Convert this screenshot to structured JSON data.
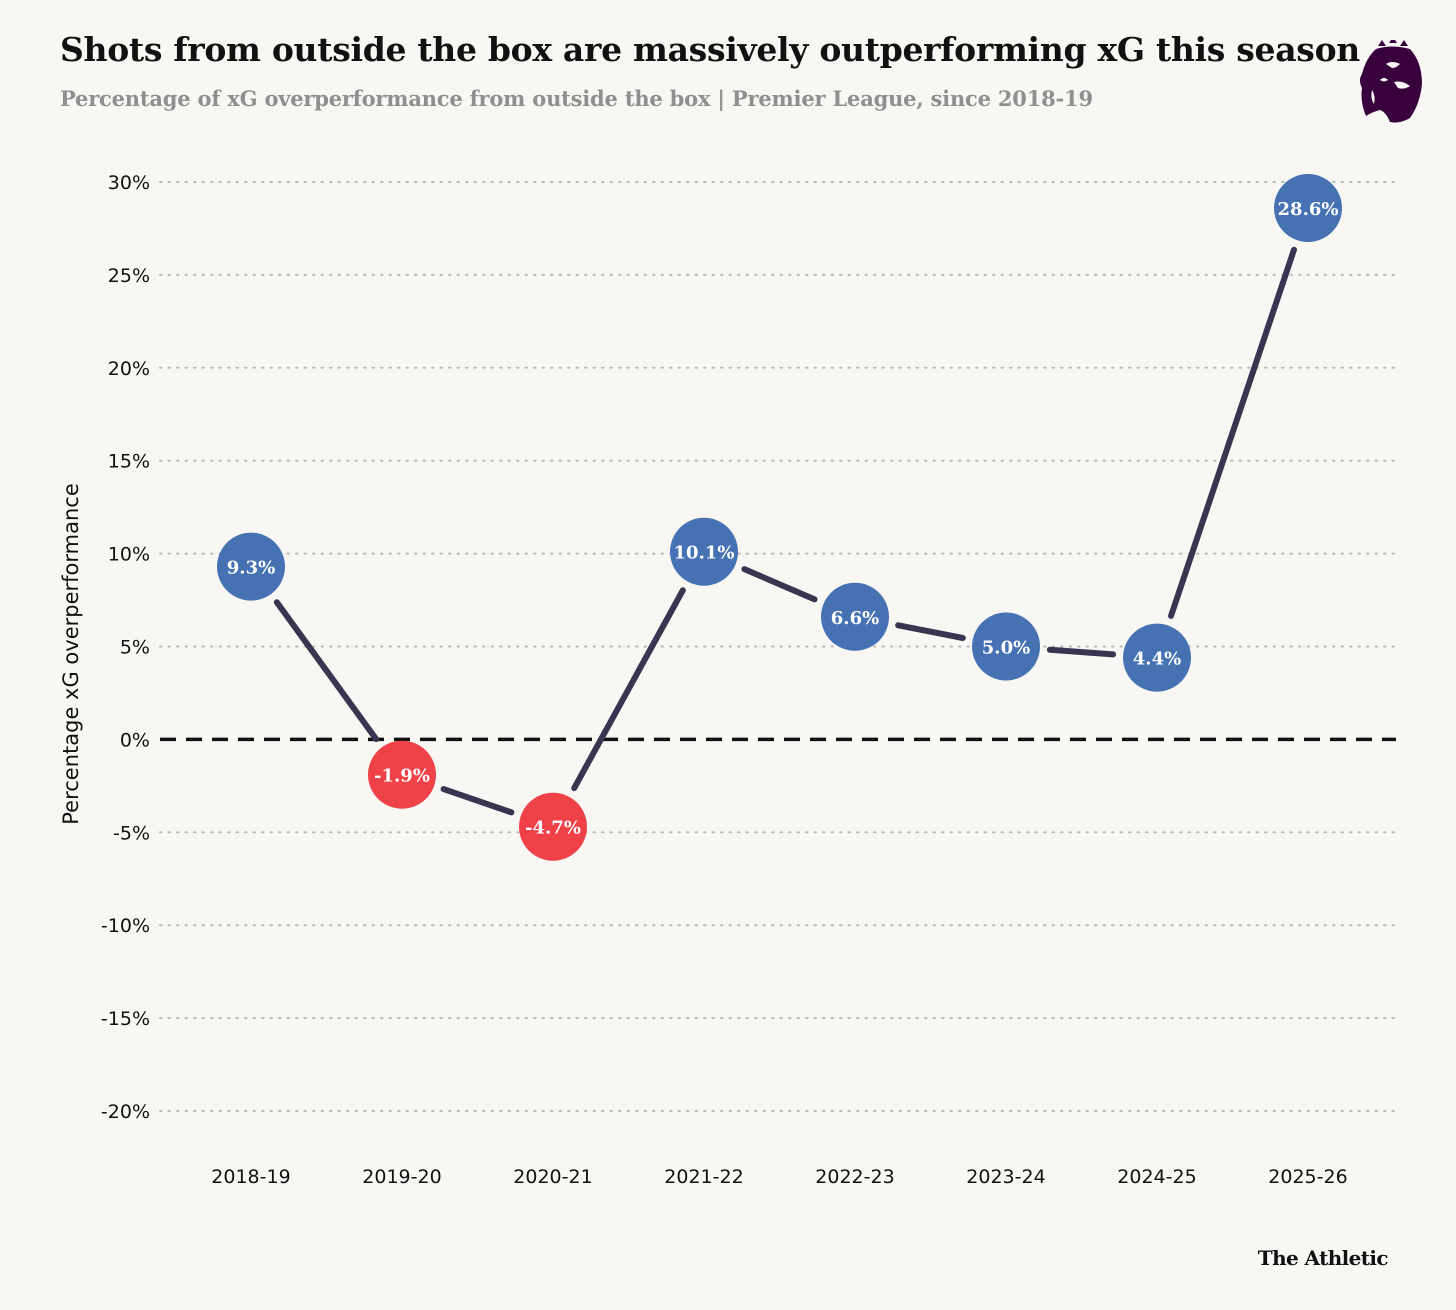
{
  "header": {
    "title": "Shots from outside the box are massively outperforming xG this season",
    "subtitle": "Percentage of xG overperformance from outside the box | Premier League, since 2018-19"
  },
  "footer": {
    "brand": "The Athletic"
  },
  "logo": {
    "icon": "premier-league-lion-icon",
    "color": "#38003c"
  },
  "colors": {
    "positive": "#4672b4",
    "negative": "#ef4148",
    "line": "#383550",
    "grid": "#b9b9b9",
    "zero_line": "#111111"
  },
  "chart_data": {
    "type": "line",
    "title": "Shots from outside the box are massively outperforming xG this season",
    "subtitle": "Percentage of xG overperformance from outside the box | Premier League, since 2018-19",
    "xlabel": "",
    "ylabel": "Percentage xG overperformance",
    "categories": [
      "2018-19",
      "2019-20",
      "2020-21",
      "2021-22",
      "2022-23",
      "2023-24",
      "2024-25",
      "2025-26"
    ],
    "values": [
      9.3,
      -1.9,
      -4.7,
      10.1,
      6.6,
      5.0,
      4.4,
      28.6
    ],
    "data_labels": [
      "9.3%",
      "-1.9%",
      "-4.7%",
      "10.1%",
      "6.6%",
      "5.0%",
      "4.4%",
      "28.6%"
    ],
    "ylim": [
      -20,
      30
    ],
    "yticks": [
      30,
      25,
      20,
      15,
      10,
      5,
      0,
      -5,
      -10,
      -15,
      -20
    ],
    "ytick_labels": [
      "30%",
      "25%",
      "20%",
      "15%",
      "10%",
      "5%",
      "0%",
      "-5%",
      "-10%",
      "-15%",
      "-20%"
    ],
    "grid": "horizontal-dotted",
    "reference_line": 0
  }
}
